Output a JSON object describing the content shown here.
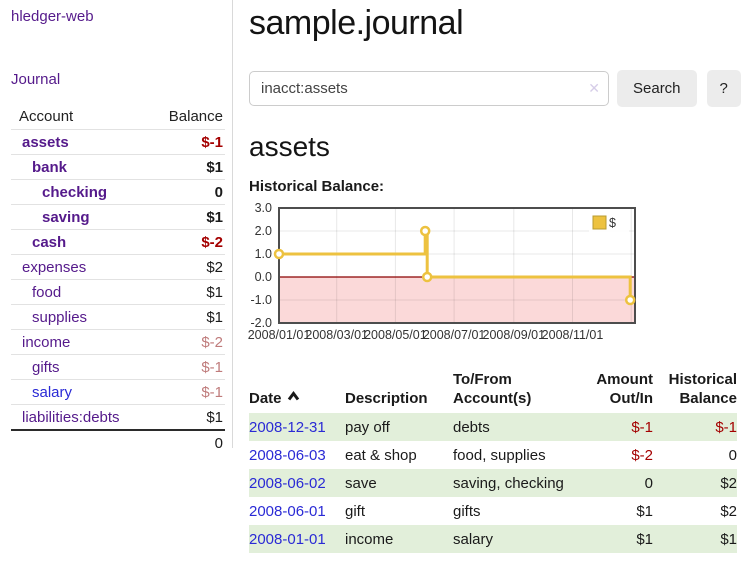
{
  "app": {
    "title": "hledger-web",
    "nav_journal": "Journal"
  },
  "colors": {
    "purple": "#551a8b",
    "blue": "#2a2ad5",
    "negative": "#a40000",
    "rose": "#bf7b7b",
    "row_green": "#e2efda"
  },
  "sidebar": {
    "col_account": "Account",
    "col_balance": "Balance",
    "rows": [
      {
        "name": "assets",
        "indent": 1,
        "bold": true,
        "link": "visited",
        "balance": "$-1",
        "balance_style": "negbold"
      },
      {
        "name": "bank",
        "indent": 2,
        "bold": true,
        "link": "visited",
        "balance": "$1",
        "balance_style": "bold"
      },
      {
        "name": "checking",
        "indent": 3,
        "bold": true,
        "link": "visited",
        "balance": "0",
        "balance_style": "bold"
      },
      {
        "name": "saving",
        "indent": 3,
        "bold": true,
        "link": "visited",
        "balance": "$1",
        "balance_style": "bold"
      },
      {
        "name": "cash",
        "indent": 2,
        "bold": true,
        "link": "visited",
        "balance": "$-2",
        "balance_style": "negbold"
      },
      {
        "name": "expenses",
        "indent": 1,
        "bold": false,
        "link": "visited",
        "balance": "$2",
        "balance_style": "plain"
      },
      {
        "name": "food",
        "indent": 2,
        "bold": false,
        "link": "visited",
        "balance": "$1",
        "balance_style": "plain"
      },
      {
        "name": "supplies",
        "indent": 2,
        "bold": false,
        "link": "visited",
        "balance": "$1",
        "balance_style": "plain"
      },
      {
        "name": "income",
        "indent": 1,
        "bold": false,
        "link": "visited",
        "balance": "$-2",
        "balance_style": "rose"
      },
      {
        "name": "gifts",
        "indent": 2,
        "bold": false,
        "link": "visited",
        "balance": "$-1",
        "balance_style": "rose"
      },
      {
        "name": "salary",
        "indent": 2,
        "bold": false,
        "link": "new",
        "balance": "$-1",
        "balance_style": "rose"
      },
      {
        "name": "liabilities:debts",
        "indent": 1,
        "bold": false,
        "link": "visited",
        "balance": "$1",
        "balance_style": "plain"
      }
    ],
    "total": "0"
  },
  "header": {
    "title": "sample.journal"
  },
  "search": {
    "value": "inacct:assets",
    "clear_glyph": "✕",
    "button": "Search",
    "help": "?"
  },
  "account_page": {
    "heading": "assets",
    "chart_label": "Historical Balance:"
  },
  "chart_data": {
    "type": "line",
    "title": "Historical Balance:",
    "step": true,
    "series": [
      {
        "name": "$",
        "color": "#edc240",
        "points": [
          [
            "2008-01-01",
            1
          ],
          [
            "2008-06-01",
            2
          ],
          [
            "2008-06-03",
            0
          ],
          [
            "2008-12-31",
            -1
          ]
        ]
      }
    ],
    "x_ticks": [
      {
        "date": "2008-01-01",
        "label": "2008/01/01"
      },
      {
        "date": "2008-03-01",
        "label": "2008/03/01"
      },
      {
        "date": "2008-05-01",
        "label": "2008/05/01"
      },
      {
        "date": "2008-07-01",
        "label": "2008/07/01"
      },
      {
        "date": "2008-09-01",
        "label": "2008/09/01"
      },
      {
        "date": "2008-11-01",
        "label": "2008/11/01"
      },
      {
        "date": "2009-01-01",
        "label": ""
      }
    ],
    "y_ticks": [
      3.0,
      2.0,
      1.0,
      0.0,
      -1.0,
      -2.0
    ],
    "ylim": [
      -2,
      3
    ],
    "xlim": [
      "2008-01-01",
      "2009-01-05"
    ],
    "grid": true,
    "legend": {
      "label": "$",
      "position": "top-right"
    },
    "colors": {
      "zero_line": "#8b0000",
      "negative_fill": "#fbd9d9",
      "plot_border": "#4d4d4d"
    }
  },
  "register": {
    "col_date": "Date",
    "col_description": "Description",
    "col_accounts": "To/From Account(s)",
    "col_amount": "Amount Out/In",
    "col_balance": "Historical Balance",
    "rows": [
      {
        "date": "2008-12-31",
        "description": "pay off",
        "accounts": "debts",
        "amount": "$-1",
        "amount_class": "neg",
        "balance": "$-1",
        "balance_class": "neg",
        "shaded": true
      },
      {
        "date": "2008-06-03",
        "description": "eat & shop",
        "accounts": "food, supplies",
        "amount": "$-2",
        "amount_class": "neg",
        "balance": "0",
        "balance_class": "",
        "shaded": false
      },
      {
        "date": "2008-06-02",
        "description": "save",
        "accounts": "saving, checking",
        "amount": "0",
        "amount_class": "",
        "balance": "$2",
        "balance_class": "",
        "shaded": true
      },
      {
        "date": "2008-06-01",
        "description": "gift",
        "accounts": "gifts",
        "amount": "$1",
        "amount_class": "",
        "balance": "$2",
        "balance_class": "",
        "shaded": false
      },
      {
        "date": "2008-01-01",
        "description": "income",
        "accounts": "salary",
        "amount": "$1",
        "amount_class": "",
        "balance": "$1",
        "balance_class": "",
        "shaded": true
      }
    ]
  }
}
